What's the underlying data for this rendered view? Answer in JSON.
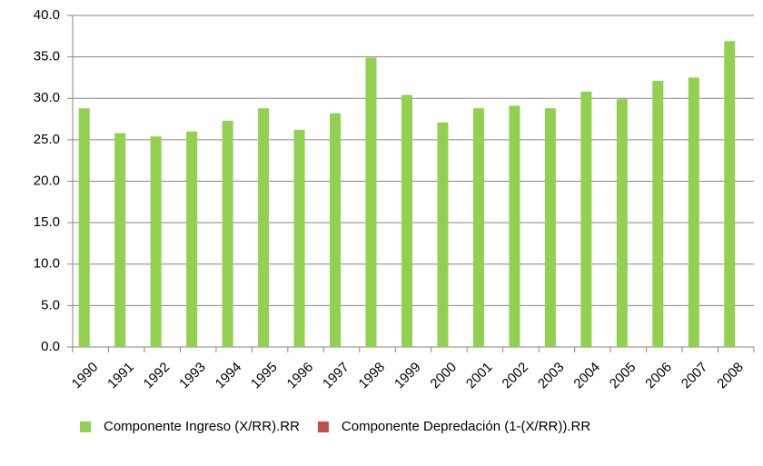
{
  "chart_data": {
    "type": "bar",
    "categories": [
      "1990",
      "1991",
      "1992",
      "1993",
      "1994",
      "1995",
      "1996",
      "1997",
      "1998",
      "1999",
      "2000",
      "2001",
      "2002",
      "2003",
      "2004",
      "2005",
      "2006",
      "2007",
      "2008"
    ],
    "series": [
      {
        "name": "Componente Ingreso (X/RR).RR",
        "color": "#92d050",
        "values": [
          28.8,
          25.8,
          25.4,
          26.0,
          27.3,
          28.8,
          26.2,
          28.2,
          34.9,
          30.4,
          27.1,
          28.8,
          29.1,
          28.8,
          30.8,
          29.9,
          32.1,
          32.5,
          36.9
        ]
      },
      {
        "name": "Componente Depredación (1-(X/RR)).RR",
        "color": "#c0504d",
        "values": [
          0,
          0,
          0,
          0,
          0,
          0,
          0,
          0,
          0,
          0,
          0,
          0,
          0,
          0,
          0,
          0,
          0,
          0,
          0
        ]
      }
    ],
    "ylim": [
      0,
      40
    ],
    "yticks": [
      {
        "value": 0,
        "label": "0.0"
      },
      {
        "value": 5,
        "label": "5.0"
      },
      {
        "value": 10,
        "label": "10.0"
      },
      {
        "value": 15,
        "label": "15.0"
      },
      {
        "value": 20,
        "label": "20.0"
      },
      {
        "value": 25,
        "label": "25.0"
      },
      {
        "value": 30,
        "label": "30.0"
      },
      {
        "value": 35,
        "label": "35.0"
      },
      {
        "value": 40,
        "label": "40.0"
      }
    ],
    "grid": true,
    "legend": "bottom"
  }
}
